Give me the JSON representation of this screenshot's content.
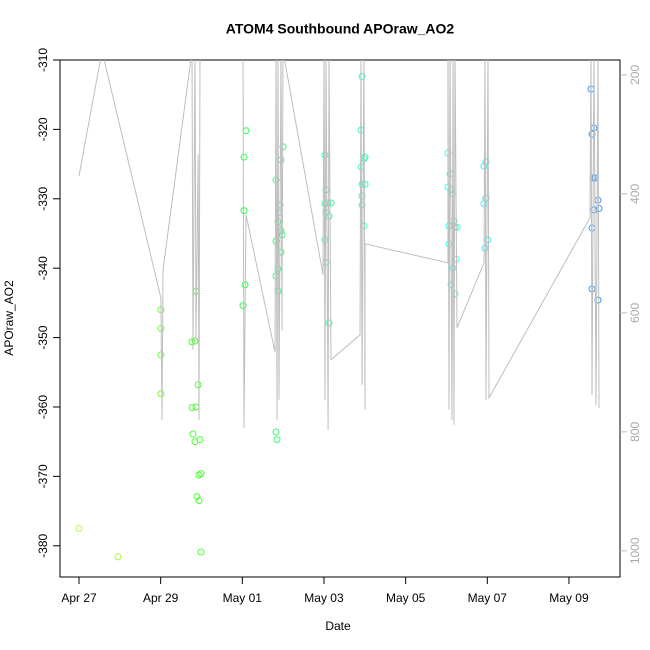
{
  "chart_data": {
    "type": "scatter",
    "title": "ATOM4 Southbound APOraw_AO2",
    "x_label": "Date",
    "y_label": "APOraw_AO2",
    "xlim": [
      "Apr 26 12:50",
      "May 10 06:00"
    ],
    "xticks": [
      "Apr 27",
      "Apr 29",
      "May 01",
      "May 03",
      "May 05",
      "May 07",
      "May 09"
    ],
    "ylim": [
      -384.5,
      -310
    ],
    "yticks": [
      -380,
      -370,
      -360,
      -350,
      -340,
      -330,
      -320,
      -310
    ],
    "y2lim": [
      1044,
      175
    ],
    "y2ticks": [
      200,
      400,
      600,
      800,
      1000
    ],
    "series": [
      {
        "type": "scatter",
        "x": [
          "Apr 27 00:00",
          "Apr 27 22:55",
          "Apr 29 00:10",
          "Apr 29 00:10",
          "Apr 29 00:10",
          "Apr 29 00:10",
          "Apr 29 18:25",
          "Apr 29 20:10",
          "Apr 29 20:48",
          "Apr 29 18:25",
          "Apr 29 20:48",
          "Apr 29 19:00",
          "Apr 29 20:10",
          "Apr 29 23:07",
          "Apr 29 22:00",
          "Apr 29 21:22",
          "Apr 29 22:33",
          "Apr 29 22:33",
          "Apr 29 23:43",
          "Apr 29 23:43",
          "May 01 02:10",
          "May 01 01:00",
          "May 01 01:00",
          "May 01 01:35",
          "May 01 00:24",
          "May 01 19:48",
          "May 01 19:48",
          "May 01 19:48",
          "May 01 20:58",
          "May 01 20:58",
          "May 01 20:58",
          "May 01 21:33",
          "May 01 21:33",
          "May 01 22:44",
          "May 01 22:09",
          "May 01 22:44",
          "May 01 23:19",
          "May 01 23:55",
          "May 01 22:44",
          "May 01 19:48",
          "May 01 20:22",
          "May 03 00:36",
          "May 03 01:12",
          "May 03 00:36",
          "May 03 01:12",
          "May 03 02:24",
          "May 03 04:08",
          "May 03 00:36",
          "May 03 01:12",
          "May 03 02:57",
          "May 03 02:57",
          "May 03 21:46",
          "May 03 22:21",
          "May 03 21:46",
          "May 03 22:21",
          "May 04 00:07",
          "May 03 23:31",
          "May 04 00:07",
          "May 03 22:21",
          "May 03 22:21",
          "May 03 23:31",
          "May 06 00:53",
          "May 06 02:04",
          "May 06 00:53",
          "May 06 02:40",
          "May 06 03:15",
          "May 06 01:29",
          "May 06 03:15",
          "May 06 04:25",
          "May 06 05:01",
          "May 06 06:12",
          "May 06 01:29",
          "May 06 03:50",
          "May 06 05:36",
          "May 06 02:40",
          "May 06 05:01",
          "May 06 23:14",
          "May 06 22:03",
          "May 06 23:14",
          "May 06 22:03",
          "May 07 00:24",
          "May 06 22:39",
          "May 09 12:58",
          "May 09 13:33",
          "May 09 14:43",
          "May 09 14:08",
          "May 09 15:19",
          "May 09 14:43",
          "May 09 17:04",
          "May 09 17:40",
          "May 09 13:33",
          "May 09 13:33",
          "May 09 17:04"
        ],
        "values": [
          -377.5,
          -381.6,
          -346,
          -348.7,
          -352.5,
          -358.1,
          -350.6,
          -350.5,
          -343.3,
          -360.1,
          -360,
          -363.9,
          -365,
          -364.7,
          -356.8,
          -372.9,
          -373.5,
          -369.8,
          -369.6,
          -380.9,
          -320.2,
          -324,
          -331.7,
          -342.4,
          -345.4,
          -327.3,
          -336.1,
          -341.1,
          -340.1,
          -343.3,
          -333.3,
          -334.2,
          -332,
          -334.6,
          -330.9,
          -324.4,
          -335.2,
          -322.5,
          -337.7,
          -363.6,
          -364.7,
          -323.7,
          -328.7,
          -330.7,
          -332,
          -330.6,
          -330.6,
          -335.9,
          -339.2,
          -347.9,
          -332.5,
          -320.1,
          -312.4,
          -325.4,
          -327.9,
          -327.9,
          -324.2,
          -324,
          -329.6,
          -330.9,
          -333.9,
          -323.4,
          -326.4,
          -328.3,
          -328.7,
          -329.3,
          -333.9,
          -333.9,
          -333.2,
          -334.1,
          -334.1,
          -336.5,
          -340,
          -338.7,
          -342.4,
          -343.7,
          -324.7,
          -325.3,
          -329.9,
          -330.7,
          -335.9,
          -337.1,
          -314.2,
          -320.7,
          -319.8,
          -327,
          -327,
          -331.6,
          -330.2,
          -331.4,
          -334.2,
          -343,
          -344.6
        ],
        "colors": [
          "#b3ff33",
          "#a0ff33",
          "#6dff33",
          "#6dff33",
          "#6dff33",
          "#6dff33",
          "#4dff33",
          "#4dff33",
          "#4dff33",
          "#4dff33",
          "#4dff33",
          "#4dff33",
          "#4dff33",
          "#4dff33",
          "#4dff33",
          "#4dff33",
          "#4dff33",
          "#4dff33",
          "#4dff33",
          "#4dff33",
          "#33ff4d",
          "#33ff4d",
          "#33ff4d",
          "#33ff4d",
          "#33ff4d",
          "#33ff6e",
          "#33ff6e",
          "#33ff6e",
          "#33ff6e",
          "#33ff6e",
          "#33ff6e",
          "#33ff6e",
          "#33ff6e",
          "#33ff6e",
          "#33ff6e",
          "#33ff6e",
          "#33ff6e",
          "#33ff6e",
          "#33ff6e",
          "#33ff6e",
          "#33ff6e",
          "#33ffa0",
          "#33ffa0",
          "#33ffa0",
          "#33ffa0",
          "#33ffa0",
          "#33ffa0",
          "#33ffa0",
          "#33ffa0",
          "#33ffa0",
          "#33ffa0",
          "#33ffbb",
          "#33ffbb",
          "#33ffbb",
          "#33ffbb",
          "#33ffbb",
          "#33ffbb",
          "#33ffbb",
          "#33ffbb",
          "#33ffbb",
          "#33ffbb",
          "#33ffee",
          "#33ffee",
          "#33ffee",
          "#33ffee",
          "#33ffee",
          "#33ffee",
          "#33ffee",
          "#33ffee",
          "#33ffee",
          "#33ffee",
          "#33ffee",
          "#33ffee",
          "#33ffee",
          "#33ffee",
          "#33ffee",
          "#33f0ff",
          "#33f0ff",
          "#33f0ff",
          "#33f0ff",
          "#33f0ff",
          "#33f0ff",
          "#3399ff",
          "#3399ff",
          "#3399ff",
          "#3399ff",
          "#3399ff",
          "#3399ff",
          "#3399ff",
          "#3399ff",
          "#3399ff",
          "#3399ff",
          "#3399ff"
        ]
      },
      {
        "type": "line",
        "axis": "y2",
        "color": "#bebebe",
        "x": [
          "Apr 27 00:00",
          "Apr 27 13:30",
          "Apr 29 00:10",
          "Apr 29 00:47",
          "Apr 29 01:22",
          "Apr 29 18:25",
          "Apr 29 19:00",
          "Apr 29 20:10",
          "Apr 29 20:48",
          "Apr 29 22:00",
          "Apr 29 22:33",
          "Apr 29 23:07",
          "May 01 00:24",
          "May 01 01:00",
          "May 01 02:10",
          "May 01 19:12",
          "May 01 19:48",
          "May 01 20:22",
          "May 01 20:58",
          "May 01 21:33",
          "May 01 22:44",
          "May 01 23:19",
          "May 01 23:55",
          "May 02 23:25",
          "May 03 00:00",
          "May 03 00:36",
          "May 03 01:12",
          "May 03 02:24",
          "May 03 02:57",
          "May 03 04:08",
          "May 03 21:10",
          "May 03 21:46",
          "May 03 22:21",
          "May 03 23:31",
          "May 04 00:07",
          "May 04 00:07",
          "May 06 00:53",
          "May 06 00:53",
          "May 06 01:29",
          "May 06 02:04",
          "May 06 03:15",
          "May 06 03:50",
          "May 06 04:25",
          "May 06 05:01",
          "May 06 06:12",
          "May 06 22:03",
          "May 06 22:39",
          "May 06 23:14",
          "May 07 00:24",
          "May 07 01:00",
          "May 09 12:22",
          "May 09 12:58",
          "May 09 13:33",
          "May 09 14:43",
          "May 09 15:53",
          "May 09 17:04",
          "May 09 17:40"
        ],
        "values": [
          370,
          160,
          575,
          780,
          528,
          160,
          662,
          160,
          645,
          334,
          780,
          160,
          160,
          793,
          435,
          666,
          160,
          780,
          160,
          746,
          160,
          629,
          160,
          536,
          160,
          746,
          160,
          797,
          160,
          679,
          637,
          160,
          721,
          160,
          763,
          484,
          516,
          160,
          763,
          160,
          780,
          160,
          788,
          160,
          625,
          516,
          160,
          746,
          160,
          743,
          440,
          160,
          738,
          160,
          755,
          160,
          760
        ]
      }
    ]
  }
}
